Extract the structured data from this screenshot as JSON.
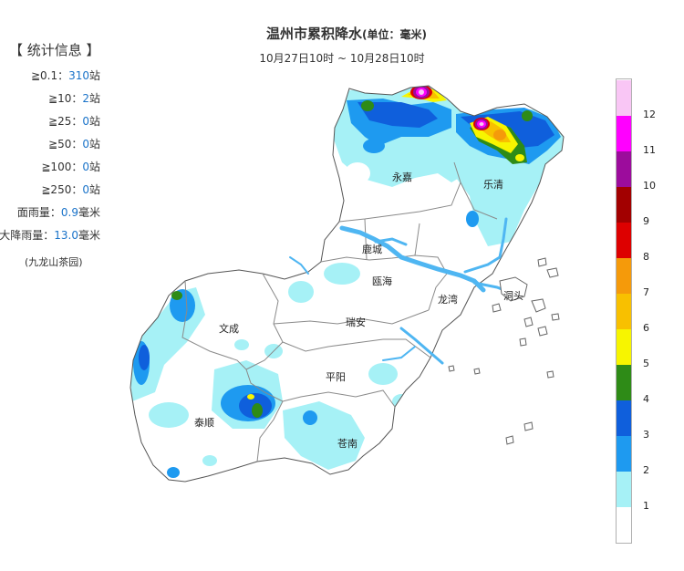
{
  "header": {
    "title": "温州市累积降水",
    "unit": "(单位：毫米)",
    "time_range": "10月27日10时 ~ 10月28日10时"
  },
  "stats": {
    "heading": "【 统计信息 】",
    "rows": [
      {
        "label": "≧0.1：",
        "value": "310",
        "suffix": "站"
      },
      {
        "label": "≧10：",
        "value": "2",
        "suffix": "站"
      },
      {
        "label": "≧25：",
        "value": "0",
        "suffix": "站"
      },
      {
        "label": "≧50：",
        "value": "0",
        "suffix": "站"
      },
      {
        "label": "≧100：",
        "value": "0",
        "suffix": "站"
      },
      {
        "label": "≧250：",
        "value": "0",
        "suffix": "站"
      },
      {
        "label": "面雨量：",
        "value": "0.9",
        "suffix": "毫米"
      },
      {
        "label": "最大降雨量：",
        "value": "13.0",
        "suffix": "毫米"
      }
    ],
    "max_station": "(九龙山茶园)"
  },
  "map": {
    "regions": [
      "永嘉",
      "乐清",
      "鹿城",
      "瓯海",
      "龙湾",
      "洞头",
      "瑞安",
      "文成",
      "平阳",
      "泰顺",
      "苍南"
    ]
  },
  "legend": {
    "labels": [
      "1",
      "2",
      "3",
      "4",
      "5",
      "6",
      "7",
      "8",
      "9",
      "10",
      "11",
      "12"
    ],
    "colors": [
      "#ffffff",
      "#a6f1f6",
      "#1e9af0",
      "#0f5fdc",
      "#2e8b17",
      "#f7f500",
      "#f8c000",
      "#f59a0a",
      "#dd0000",
      "#a20000",
      "#9c0c9c",
      "#ff00ff",
      "#f9c6f5"
    ]
  }
}
